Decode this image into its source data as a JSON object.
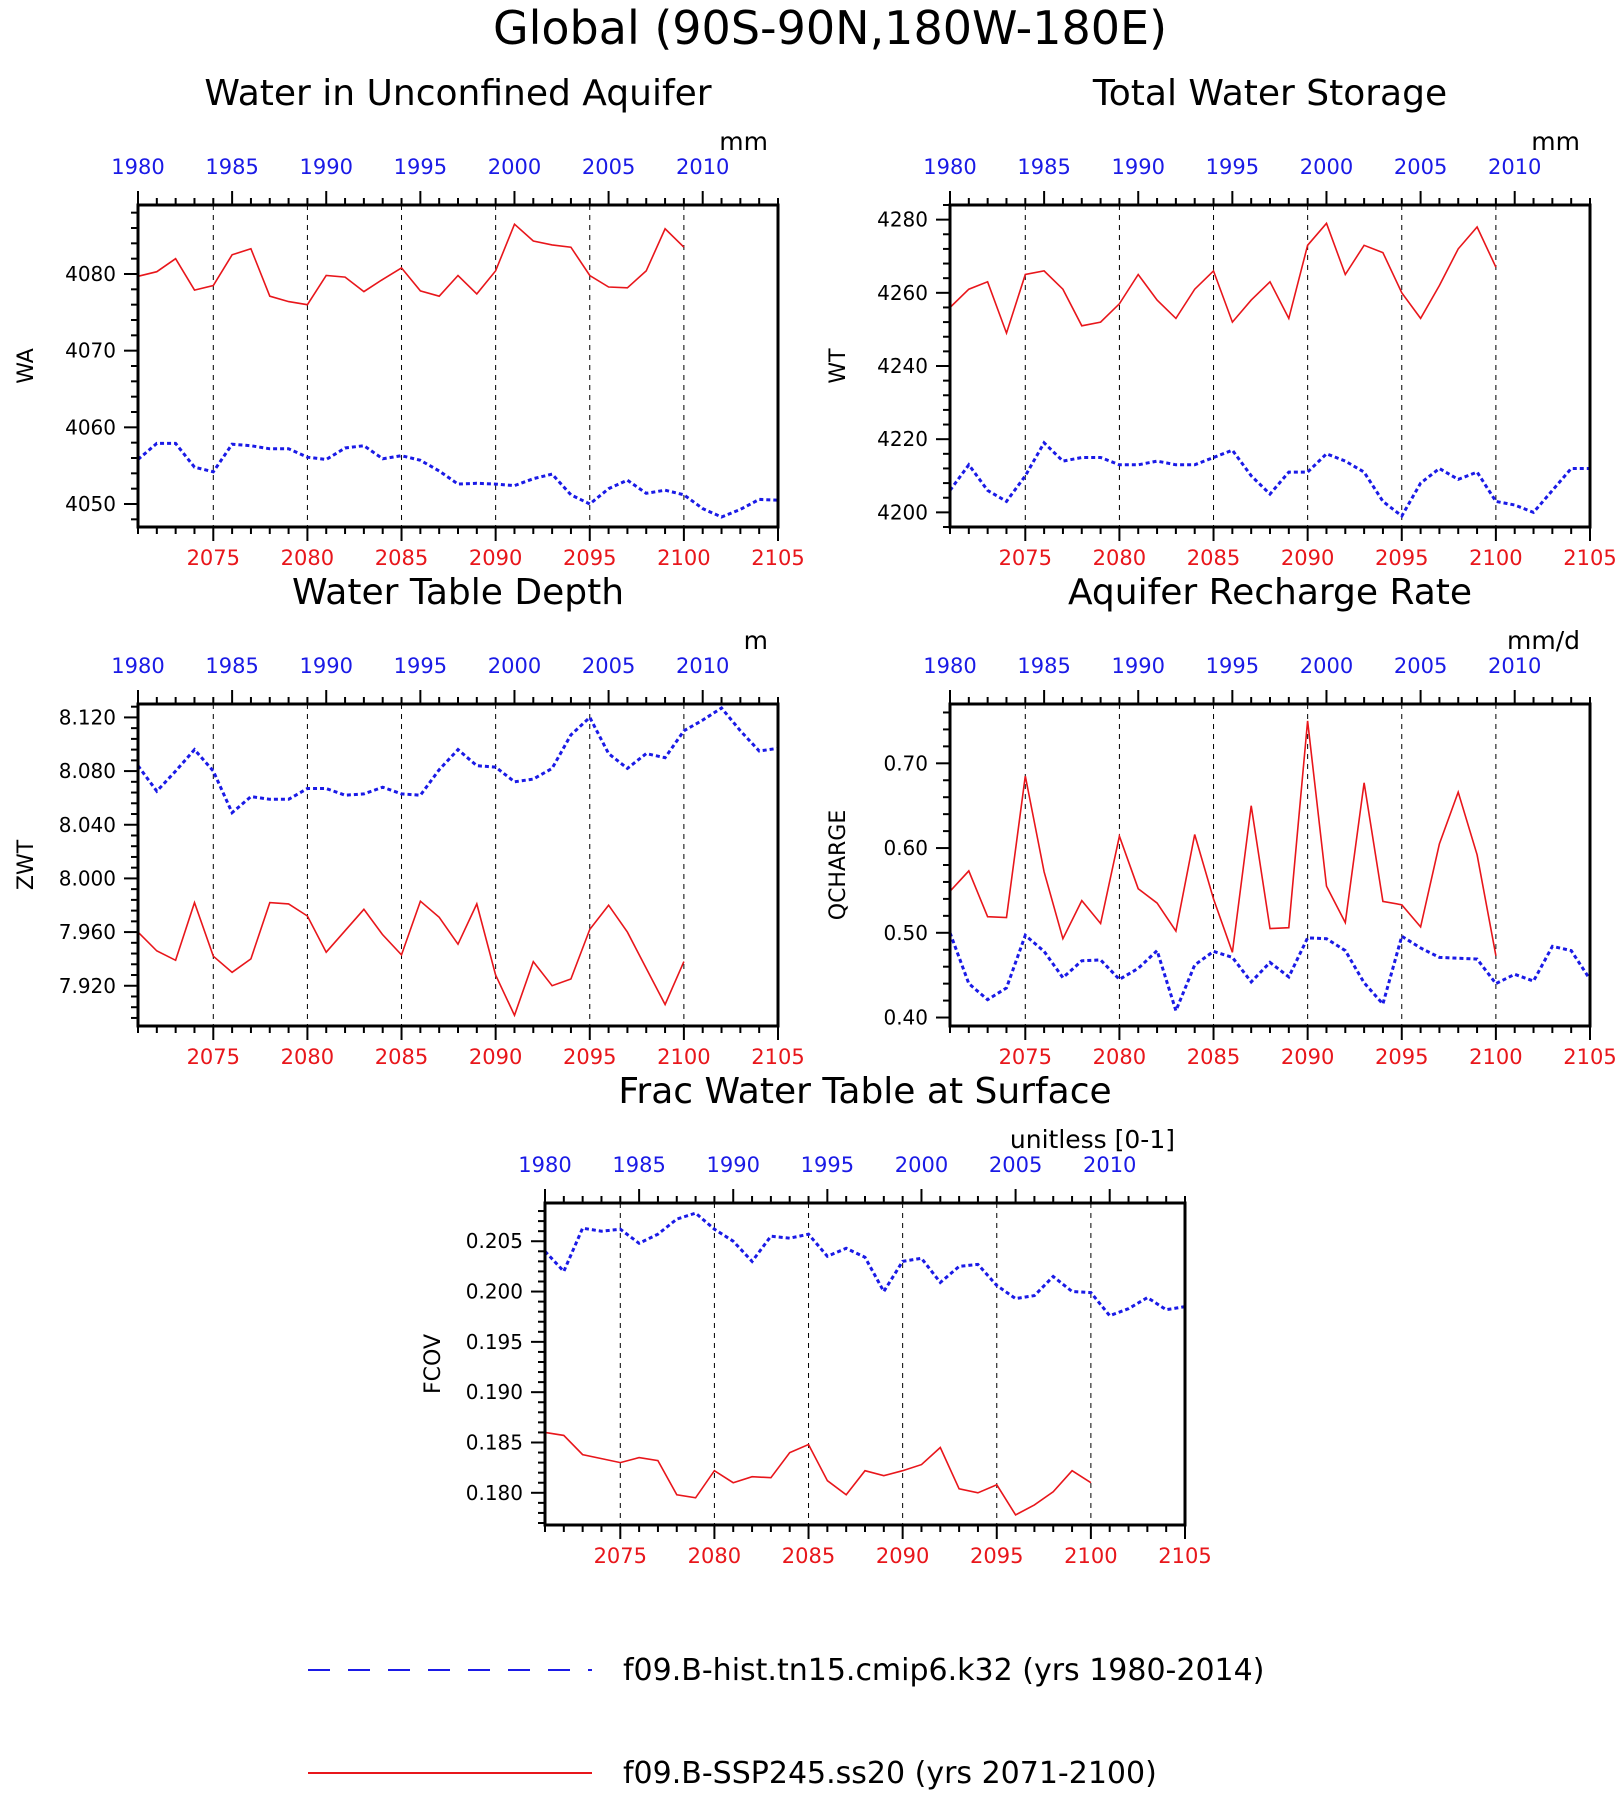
{
  "title": "Global (90S-90N,180W-180E)",
  "colors": {
    "hist": "#1a1ae6",
    "ssp": "#e8161b",
    "axis": "#000000"
  },
  "legend": [
    {
      "label": "f09.B-hist.tn15.cmip6.k32 (yrs 1980-2014)",
      "color": "#1a1ae6",
      "style": "dashed"
    },
    {
      "label": "f09.B-SSP245.ss20 (yrs 2071-2100)",
      "color": "#e8161b",
      "style": "solid"
    }
  ],
  "chart_data": [
    {
      "type": "line",
      "title": "Water in Unconfined Aquifer",
      "ylabel": "WA",
      "units": "mm",
      "ylim": [
        4047,
        4089
      ],
      "yticks": [
        "4050",
        "4060",
        "4070",
        "4080"
      ],
      "bottom_axis": {
        "range": [
          2071,
          2105
        ],
        "ticks": [
          "2075",
          "2080",
          "2085",
          "2090",
          "2095",
          "2100",
          "2105"
        ]
      },
      "top_axis": {
        "range": [
          1980,
          2014
        ],
        "ticks": [
          "1980",
          "1985",
          "1990",
          "1995",
          "2000",
          "2005",
          "2010"
        ]
      },
      "grid": "dashed vertical lines at 5-year ticks",
      "series": [
        {
          "name": "f09.B-hist.tn15.cmip6.k32",
          "x": [
            1980,
            1981,
            1982,
            1983,
            1984,
            1985,
            1986,
            1987,
            1988,
            1989,
            1990,
            1991,
            1992,
            1993,
            1994,
            1995,
            1996,
            1997,
            1998,
            1999,
            2000,
            2001,
            2002,
            2003,
            2004,
            2005,
            2006,
            2007,
            2008,
            2009,
            2010,
            2011,
            2012,
            2013,
            2014
          ],
          "values": [
            4055.8,
            4057.9,
            4057.9,
            4054.8,
            4054.2,
            4057.8,
            4057.6,
            4057.2,
            4057.2,
            4056.1,
            4055.8,
            4057.3,
            4057.6,
            4055.9,
            4056.3,
            4055.7,
            4054.3,
            4052.6,
            4052.7,
            4052.6,
            4052.4,
            4053.3,
            4053.9,
            4051.2,
            4050.0,
            4052.0,
            4053.1,
            4051.4,
            4051.8,
            4051.2,
            4049.4,
            4048.3,
            4049.3,
            4050.6,
            4050.5
          ]
        },
        {
          "name": "f09.B-SSP245.ss20",
          "x": [
            2071,
            2072,
            2073,
            2074,
            2075,
            2076,
            2077,
            2078,
            2079,
            2080,
            2081,
            2082,
            2083,
            2084,
            2085,
            2086,
            2087,
            2088,
            2089,
            2090,
            2091,
            2092,
            2093,
            2094,
            2095,
            2096,
            2097,
            2098,
            2099,
            2100
          ],
          "values": [
            4079.7,
            4080.3,
            4082.0,
            4077.9,
            4078.5,
            4082.5,
            4083.3,
            4077.1,
            4076.4,
            4076.0,
            4079.8,
            4079.6,
            4077.7,
            4079.3,
            4080.8,
            4077.8,
            4077.1,
            4079.8,
            4077.4,
            4080.4,
            4086.5,
            4084.3,
            4083.8,
            4083.5,
            4079.8,
            4078.3,
            4078.2,
            4080.4,
            4085.9,
            4083.5
          ]
        }
      ]
    },
    {
      "type": "line",
      "title": "Total Water Storage",
      "ylabel": "WT",
      "units": "mm",
      "ylim": [
        4196,
        4284
      ],
      "yticks": [
        "4200",
        "4220",
        "4240",
        "4260",
        "4280"
      ],
      "bottom_axis": {
        "range": [
          2071,
          2105
        ],
        "ticks": [
          "2075",
          "2080",
          "2085",
          "2090",
          "2095",
          "2100",
          "2105"
        ]
      },
      "top_axis": {
        "range": [
          1980,
          2014
        ],
        "ticks": [
          "1980",
          "1985",
          "1990",
          "1995",
          "2000",
          "2005",
          "2010"
        ]
      },
      "grid": "dashed vertical lines at 5-year ticks",
      "series": [
        {
          "name": "f09.B-hist.tn15.cmip6.k32",
          "x": [
            1980,
            1981,
            1982,
            1983,
            1984,
            1985,
            1986,
            1987,
            1988,
            1989,
            1990,
            1991,
            1992,
            1993,
            1994,
            1995,
            1996,
            1997,
            1998,
            1999,
            2000,
            2001,
            2002,
            2003,
            2004,
            2005,
            2006,
            2007,
            2008,
            2009,
            2010,
            2011,
            2012,
            2013,
            2014
          ],
          "values": [
            4206,
            4213,
            4206,
            4203,
            4210,
            4219,
            4214,
            4215,
            4215,
            4213,
            4213,
            4214,
            4213,
            4213,
            4215,
            4217,
            4210,
            4205,
            4211,
            4211,
            4216,
            4214,
            4211,
            4203,
            4199,
            4208,
            4212,
            4209,
            4211,
            4203,
            4202,
            4200,
            4206,
            4212,
            4212
          ]
        },
        {
          "name": "f09.B-SSP245.ss20",
          "x": [
            2071,
            2072,
            2073,
            2074,
            2075,
            2076,
            2077,
            2078,
            2079,
            2080,
            2081,
            2082,
            2083,
            2084,
            2085,
            2086,
            2087,
            2088,
            2089,
            2090,
            2091,
            2092,
            2093,
            2094,
            2095,
            2096,
            2097,
            2098,
            2099,
            2100
          ],
          "values": [
            4256,
            4261,
            4263,
            4249,
            4265,
            4266,
            4261,
            4251,
            4252,
            4257,
            4265,
            4258,
            4253,
            4261,
            4266,
            4252,
            4258,
            4263,
            4253,
            4273,
            4279,
            4265,
            4273,
            4271,
            4260,
            4253,
            4262,
            4272,
            4278,
            4267
          ]
        }
      ]
    },
    {
      "type": "line",
      "title": "Water Table Depth",
      "ylabel": "ZWT",
      "units": "m",
      "ylim": [
        7.89,
        8.13
      ],
      "yticks": [
        "7.920",
        "7.960",
        "8.000",
        "8.040",
        "8.080",
        "8.120"
      ],
      "bottom_axis": {
        "range": [
          2071,
          2105
        ],
        "ticks": [
          "2075",
          "2080",
          "2085",
          "2090",
          "2095",
          "2100",
          "2105"
        ]
      },
      "top_axis": {
        "range": [
          1980,
          2014
        ],
        "ticks": [
          "1980",
          "1985",
          "1990",
          "1995",
          "2000",
          "2005",
          "2010"
        ]
      },
      "grid": "dashed vertical lines at 5-year ticks",
      "series": [
        {
          "name": "f09.B-hist.tn15.cmip6.k32",
          "x": [
            1980,
            1981,
            1982,
            1983,
            1984,
            1985,
            1986,
            1987,
            1988,
            1989,
            1990,
            1991,
            1992,
            1993,
            1994,
            1995,
            1996,
            1997,
            1998,
            1999,
            2000,
            2001,
            2002,
            2003,
            2004,
            2005,
            2006,
            2007,
            2008,
            2009,
            2010,
            2011,
            2012,
            2013,
            2014
          ],
          "values": [
            8.084,
            8.065,
            8.08,
            8.096,
            8.08,
            8.049,
            8.061,
            8.059,
            8.059,
            8.067,
            8.067,
            8.062,
            8.063,
            8.068,
            8.063,
            8.062,
            8.081,
            8.096,
            8.084,
            8.083,
            8.072,
            8.074,
            8.082,
            8.107,
            8.12,
            8.093,
            8.082,
            8.093,
            8.09,
            8.11,
            8.118,
            8.127,
            8.11,
            8.095,
            8.097
          ]
        },
        {
          "name": "f09.B-SSP245.ss20",
          "x": [
            2071,
            2072,
            2073,
            2074,
            2075,
            2076,
            2077,
            2078,
            2079,
            2080,
            2081,
            2082,
            2083,
            2084,
            2085,
            2086,
            2087,
            2088,
            2089,
            2090,
            2091,
            2092,
            2093,
            2094,
            2095,
            2096,
            2097,
            2098,
            2099,
            2100
          ],
          "values": [
            7.96,
            7.946,
            7.939,
            7.982,
            7.942,
            7.93,
            7.94,
            7.982,
            7.981,
            7.972,
            7.945,
            7.961,
            7.977,
            7.958,
            7.943,
            7.983,
            7.971,
            7.951,
            7.981,
            7.928,
            7.898,
            7.938,
            7.92,
            7.925,
            7.962,
            7.98,
            7.96,
            7.933,
            7.906,
            7.938
          ]
        }
      ]
    },
    {
      "type": "line",
      "title": "Aquifer Recharge Rate",
      "ylabel": "QCHARGE",
      "units": "mm/d",
      "ylim": [
        0.39,
        0.77
      ],
      "yticks": [
        "0.40",
        "0.50",
        "0.60",
        "0.70"
      ],
      "bottom_axis": {
        "range": [
          2071,
          2105
        ],
        "ticks": [
          "2075",
          "2080",
          "2085",
          "2090",
          "2095",
          "2100",
          "2105"
        ]
      },
      "top_axis": {
        "range": [
          1980,
          2014
        ],
        "ticks": [
          "1980",
          "1985",
          "1990",
          "1995",
          "2000",
          "2005",
          "2010"
        ]
      },
      "grid": "dashed vertical lines at 5-year ticks",
      "series": [
        {
          "name": "f09.B-hist.tn15.cmip6.k32",
          "x": [
            1980,
            1981,
            1982,
            1983,
            1984,
            1985,
            1986,
            1987,
            1988,
            1989,
            1990,
            1991,
            1992,
            1993,
            1994,
            1995,
            1996,
            1997,
            1998,
            1999,
            2000,
            2001,
            2002,
            2003,
            2004,
            2005,
            2006,
            2007,
            2008,
            2009,
            2010,
            2011,
            2012,
            2013,
            2014
          ],
          "values": [
            0.5,
            0.44,
            0.421,
            0.435,
            0.497,
            0.478,
            0.447,
            0.467,
            0.468,
            0.445,
            0.458,
            0.479,
            0.408,
            0.462,
            0.478,
            0.471,
            0.442,
            0.465,
            0.448,
            0.494,
            0.493,
            0.479,
            0.441,
            0.416,
            0.496,
            0.482,
            0.471,
            0.47,
            0.469,
            0.44,
            0.451,
            0.443,
            0.484,
            0.479,
            0.445
          ]
        },
        {
          "name": "f09.B-SSP245.ss20",
          "x": [
            2071,
            2072,
            2073,
            2074,
            2075,
            2076,
            2077,
            2078,
            2079,
            2080,
            2081,
            2082,
            2083,
            2084,
            2085,
            2086,
            2087,
            2088,
            2089,
            2090,
            2091,
            2092,
            2093,
            2094,
            2095,
            2096,
            2097,
            2098,
            2099,
            2100
          ],
          "values": [
            0.549,
            0.573,
            0.519,
            0.518,
            0.685,
            0.572,
            0.493,
            0.538,
            0.511,
            0.614,
            0.552,
            0.535,
            0.502,
            0.616,
            0.54,
            0.477,
            0.65,
            0.505,
            0.506,
            0.75,
            0.555,
            0.512,
            0.677,
            0.537,
            0.533,
            0.507,
            0.605,
            0.666,
            0.592,
            0.473
          ]
        }
      ]
    },
    {
      "type": "line",
      "title": "Frac Water Table at Surface",
      "ylabel": "FCOV",
      "units": "unitless [0-1]",
      "ylim": [
        0.1768,
        0.2088
      ],
      "yticks": [
        "0.180",
        "0.185",
        "0.190",
        "0.195",
        "0.200",
        "0.205"
      ],
      "bottom_axis": {
        "range": [
          2071,
          2105
        ],
        "ticks": [
          "2075",
          "2080",
          "2085",
          "2090",
          "2095",
          "2100",
          "2105"
        ]
      },
      "top_axis": {
        "range": [
          1980,
          2014
        ],
        "ticks": [
          "1980",
          "1985",
          "1990",
          "1995",
          "2000",
          "2005",
          "2010"
        ]
      },
      "grid": "dashed vertical lines at 5-year ticks",
      "series": [
        {
          "name": "f09.B-hist.tn15.cmip6.k32",
          "x": [
            1980,
            1981,
            1982,
            1983,
            1984,
            1985,
            1986,
            1987,
            1988,
            1989,
            1990,
            1991,
            1992,
            1993,
            1994,
            1995,
            1996,
            1997,
            1998,
            1999,
            2000,
            2001,
            2002,
            2003,
            2004,
            2005,
            2006,
            2007,
            2008,
            2009,
            2010,
            2011,
            2012,
            2013,
            2014
          ],
          "values": [
            0.204,
            0.202,
            0.2063,
            0.206,
            0.2062,
            0.2048,
            0.2057,
            0.2072,
            0.2078,
            0.2062,
            0.205,
            0.203,
            0.2055,
            0.2053,
            0.2057,
            0.2035,
            0.2043,
            0.2034,
            0.2,
            0.203,
            0.2033,
            0.2009,
            0.2025,
            0.2027,
            0.2006,
            0.1993,
            0.1996,
            0.2015,
            0.2,
            0.1999,
            0.1976,
            0.1983,
            0.1994,
            0.1982,
            0.1985
          ]
        },
        {
          "name": "f09.B-SSP245.ss20",
          "x": [
            2071,
            2072,
            2073,
            2074,
            2075,
            2076,
            2077,
            2078,
            2079,
            2080,
            2081,
            2082,
            2083,
            2084,
            2085,
            2086,
            2087,
            2088,
            2089,
            2090,
            2091,
            2092,
            2093,
            2094,
            2095,
            2096,
            2097,
            2098,
            2099,
            2100
          ],
          "values": [
            0.186,
            0.1857,
            0.1838,
            0.1834,
            0.183,
            0.1835,
            0.1832,
            0.1798,
            0.1795,
            0.1822,
            0.181,
            0.1816,
            0.1815,
            0.184,
            0.1848,
            0.1812,
            0.1798,
            0.1822,
            0.1817,
            0.1822,
            0.1828,
            0.1845,
            0.1804,
            0.18,
            0.1808,
            0.1778,
            0.1788,
            0.1801,
            0.1822,
            0.181
          ]
        }
      ]
    }
  ]
}
